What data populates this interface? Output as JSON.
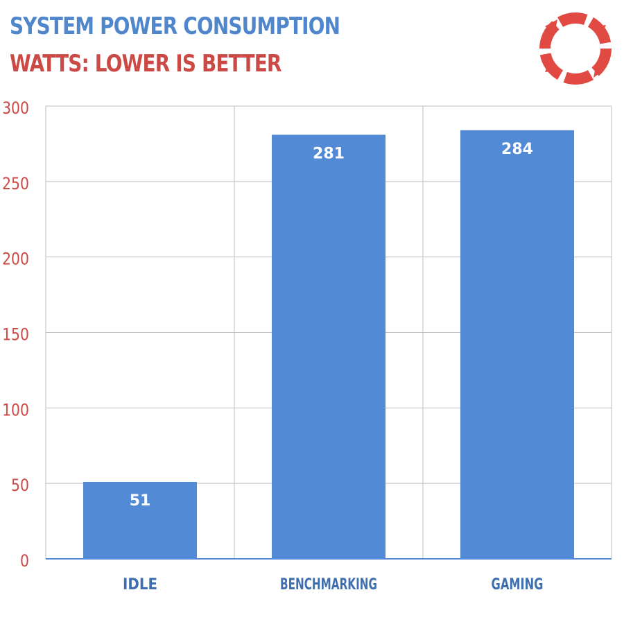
{
  "colors": {
    "title": "#4f86cc",
    "subtitle": "#cc4a45",
    "bar": "#528ad6",
    "bar_label": "#ffffff",
    "axis_tick": "#cc4a45",
    "category_label": "#3f6fae",
    "grid": "#bdbdbd",
    "logo": "#e04a42"
  },
  "icons": {
    "logo": "camera-aperture-logo-icon"
  },
  "chart_data": {
    "type": "bar",
    "title": "SYSTEM POWER CONSUMPTION",
    "subtitle": "WATTS: LOWER IS BETTER",
    "categories": [
      "IDLE",
      "BENCHMARKING",
      "GAMING"
    ],
    "values": [
      51,
      281,
      284
    ],
    "value_labels": [
      "51",
      "281",
      "284"
    ],
    "ylim": [
      0,
      300
    ],
    "yticks": [
      0,
      50,
      100,
      150,
      200,
      250,
      300
    ],
    "ytick_labels": [
      "0",
      "50",
      "100",
      "150",
      "200",
      "250",
      "300"
    ],
    "grid": true,
    "legend": "none"
  }
}
